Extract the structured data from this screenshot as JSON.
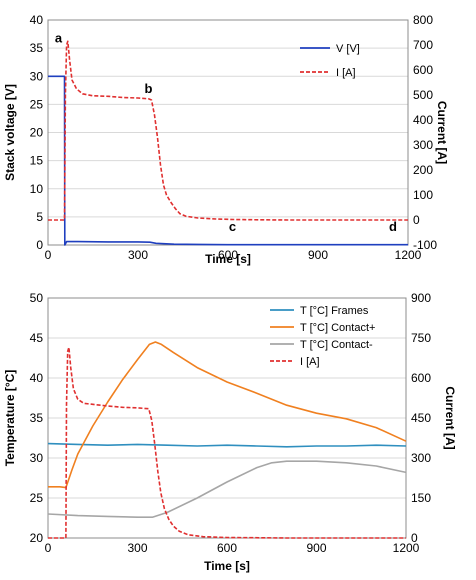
{
  "chart_data": [
    {
      "type": "line",
      "title": "",
      "xlabel": "Time [s]",
      "ylabel": "Stack voltage [V]",
      "y2label": "Current [A]",
      "xlim": [
        0,
        1200
      ],
      "ylim": [
        0,
        40
      ],
      "y2lim": [
        -100,
        800
      ],
      "xticks": [
        0,
        300,
        600,
        900,
        1200
      ],
      "yticks": [
        0,
        5,
        10,
        15,
        20,
        25,
        30,
        35,
        40
      ],
      "y2ticks": [
        -100,
        0,
        100,
        200,
        300,
        400,
        500,
        600,
        700,
        800
      ],
      "grid": "horizontal",
      "legend_position": "top-right",
      "series": [
        {
          "name": "V [V]",
          "axis": "left",
          "color": "#1f3fbf",
          "style": "solid",
          "x": [
            0,
            55,
            56,
            62,
            70,
            100,
            200,
            300,
            340,
            360,
            420,
            500,
            600,
            800,
            1000,
            1200
          ],
          "y": [
            30,
            30,
            0,
            0.6,
            0.6,
            0.6,
            0.55,
            0.55,
            0.5,
            0.3,
            0.15,
            0.1,
            0.05,
            0.05,
            0.05,
            0.05
          ]
        },
        {
          "name": "I [A]",
          "axis": "right",
          "color": "#e03030",
          "style": "dashed",
          "x": [
            0,
            55,
            58,
            62,
            66,
            72,
            80,
            95,
            115,
            150,
            200,
            250,
            300,
            335,
            345,
            355,
            365,
            375,
            385,
            395,
            410,
            425,
            440,
            460,
            500,
            560,
            620,
            700,
            800,
            900,
            1000,
            1100,
            1200
          ],
          "y": [
            0,
            0,
            500,
            700,
            715,
            640,
            560,
            525,
            505,
            497,
            495,
            490,
            488,
            485,
            480,
            420,
            330,
            220,
            140,
            100,
            70,
            45,
            25,
            15,
            8,
            4,
            2,
            1,
            0,
            0,
            0,
            0,
            0
          ]
        }
      ],
      "annotations": [
        {
          "text": "a",
          "x": 35,
          "y": 36
        },
        {
          "text": "b",
          "x": 335,
          "y": 27
        },
        {
          "text": "c",
          "x": 615,
          "y": 2.5
        },
        {
          "text": "d",
          "x": 1150,
          "y": 2.5
        }
      ]
    },
    {
      "type": "line",
      "title": "",
      "xlabel": "Time [s]",
      "ylabel": "Temperature [°C]",
      "y2label": "Current [A]",
      "xlim": [
        0,
        1200
      ],
      "ylim": [
        20,
        50
      ],
      "y2lim": [
        0,
        900
      ],
      "xticks": [
        0,
        300,
        600,
        900,
        1200
      ],
      "yticks": [
        20,
        25,
        30,
        35,
        40,
        45,
        50
      ],
      "y2ticks": [
        0,
        150,
        300,
        450,
        600,
        750,
        900
      ],
      "grid": "horizontal",
      "legend_position": "top-right",
      "series": [
        {
          "name": "T [°C] Frames",
          "axis": "left",
          "color": "#2f8fbf",
          "style": "solid",
          "x": [
            0,
            100,
            200,
            300,
            400,
            500,
            600,
            700,
            800,
            900,
            1000,
            1100,
            1200
          ],
          "y": [
            31.8,
            31.7,
            31.6,
            31.7,
            31.6,
            31.5,
            31.6,
            31.5,
            31.4,
            31.5,
            31.5,
            31.6,
            31.5
          ]
        },
        {
          "name": "T [°C] Contact+",
          "axis": "left",
          "color": "#f08020",
          "style": "solid",
          "x": [
            0,
            40,
            60,
            80,
            100,
            150,
            200,
            250,
            300,
            340,
            360,
            380,
            420,
            500,
            600,
            700,
            800,
            900,
            1000,
            1100,
            1200
          ],
          "y": [
            26.4,
            26.4,
            26.3,
            28.5,
            30.5,
            34.0,
            37.0,
            39.8,
            42.3,
            44.2,
            44.5,
            44.2,
            43.2,
            41.3,
            39.5,
            38.1,
            36.6,
            35.6,
            34.9,
            33.8,
            32.1
          ]
        },
        {
          "name": "T [°C] Contact-",
          "axis": "left",
          "color": "#a6a6a6",
          "style": "solid",
          "x": [
            0,
            100,
            200,
            300,
            350,
            400,
            500,
            600,
            700,
            750,
            800,
            900,
            1000,
            1100,
            1200
          ],
          "y": [
            23.0,
            22.8,
            22.7,
            22.6,
            22.6,
            23.2,
            25.0,
            27.0,
            28.8,
            29.4,
            29.6,
            29.6,
            29.4,
            29.0,
            28.2
          ]
        },
        {
          "name": "I [A]",
          "axis": "right",
          "color": "#e03030",
          "style": "dashed",
          "x": [
            0,
            60,
            62,
            66,
            70,
            76,
            85,
            100,
            120,
            160,
            200,
            250,
            300,
            338,
            348,
            358,
            368,
            378,
            390,
            405,
            420,
            440,
            470,
            520,
            600,
            800,
            1000,
            1200
          ],
          "y": [
            0,
            0,
            500,
            700,
            715,
            640,
            560,
            520,
            505,
            500,
            495,
            490,
            488,
            485,
            440,
            350,
            250,
            170,
            110,
            70,
            45,
            25,
            12,
            5,
            2,
            0,
            0,
            0
          ]
        }
      ],
      "annotations": []
    }
  ]
}
